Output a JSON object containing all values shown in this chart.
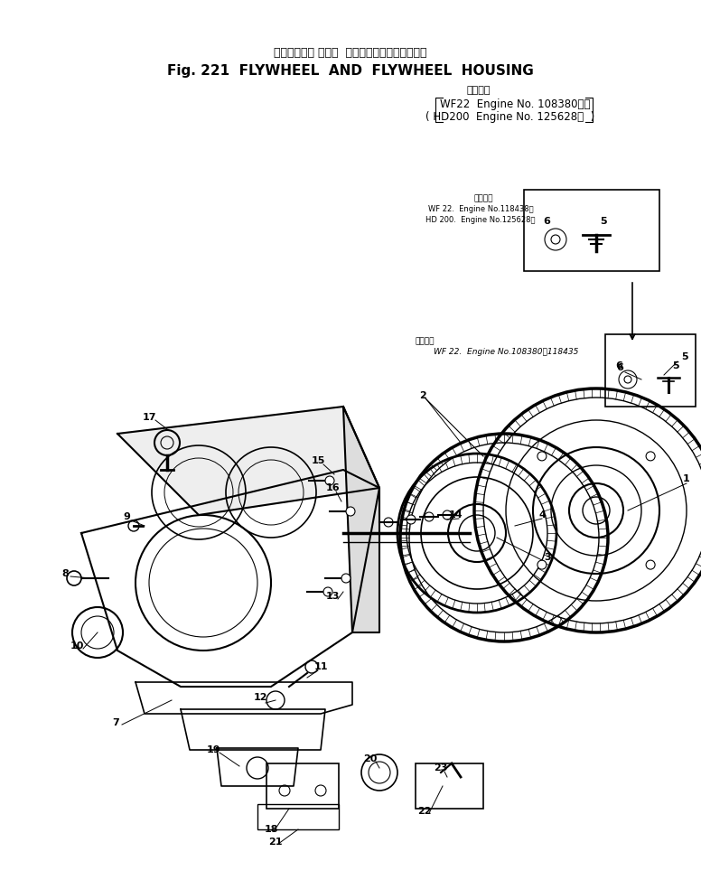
{
  "title_jp": "フライホール および  フライホイールハウジング",
  "title_en": "Fig. 221  FLYWHEEL  AND  FLYWHEEL  HOUSING",
  "applicability_jp": "適用号機",
  "applicability_line1": "WF22  Engine No. 108380～）",
  "applicability_line2": "( HD200  Engine No. 125628～  )",
  "inset_label1_jp": "適用号機",
  "inset_label1_line1": "WF 22.  Engine No.118438～",
  "inset_label1_line2": "HD 200.  Engine No.125628～",
  "inset_label2": "WF 22.  Engine No.108380～118435",
  "bg_color": "#ffffff",
  "line_color": "#000000",
  "part_numbers": [
    "1",
    "2",
    "3",
    "4",
    "5",
    "6",
    "7",
    "8",
    "9",
    "10",
    "11",
    "12",
    "13",
    "14",
    "15",
    "16",
    "17",
    "18",
    "19",
    "20",
    "21",
    "22",
    "23"
  ]
}
